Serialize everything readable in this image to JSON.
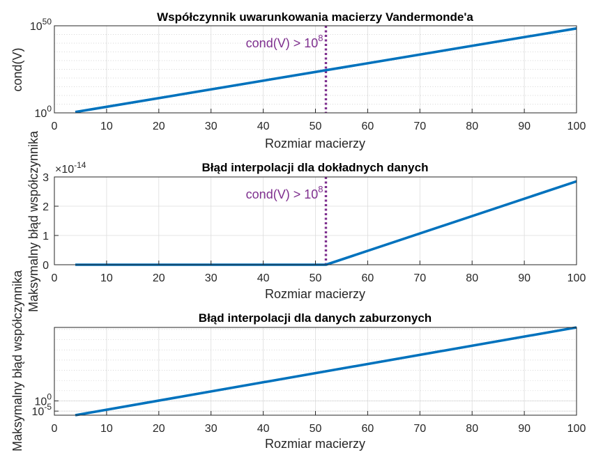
{
  "colors": {
    "series": "#0072BD",
    "threshold": "#7E2F8E",
    "grid": "#dcdcdc",
    "axis": "#262626"
  },
  "chart_data": [
    {
      "type": "line",
      "title": "Współczynnik uwarunkowania macierzy Vandermonde'a",
      "xlabel": "Rozmiar macierzy",
      "ylabel": "cond(V)",
      "yscale": "log",
      "xlim": [
        0,
        100
      ],
      "ylim_exp": [
        0,
        50
      ],
      "xticks": [
        "0",
        "10",
        "20",
        "30",
        "40",
        "50",
        "60",
        "70",
        "80",
        "90",
        "100"
      ],
      "yticks": [
        {
          "base": "10",
          "exp": "0"
        },
        {
          "base": "10",
          "exp": "50"
        }
      ],
      "grid": true,
      "series": [
        {
          "x": [
            4,
            100
          ],
          "y_exp": [
            0.5,
            48.5
          ]
        }
      ],
      "threshold": {
        "x": 52,
        "label_base": "cond(V) > 10",
        "label_exp": "8"
      }
    },
    {
      "type": "line",
      "title": "Błąd interpolacji dla dokładnych danych",
      "xlabel": "Rozmiar macierzy",
      "ylabel": "Maksymalny błąd współczynnika",
      "yscale": "linear",
      "xlim": [
        0,
        100
      ],
      "ylim": [
        0,
        3
      ],
      "y_multiplier": {
        "base": "×10",
        "exp": "-14"
      },
      "xticks": [
        "0",
        "10",
        "20",
        "30",
        "40",
        "50",
        "60",
        "70",
        "80",
        "90",
        "100"
      ],
      "yticks": [
        "0",
        "1",
        "2",
        "3"
      ],
      "grid": true,
      "series": [
        {
          "x": [
            4,
            52,
            100
          ],
          "y": [
            0,
            0,
            2.85
          ]
        }
      ],
      "threshold": {
        "x": 52,
        "label_base": "cond(V) > 10",
        "label_exp": "8"
      }
    },
    {
      "type": "line",
      "title": "Błąd interpolacji dla danych zaburzonych",
      "xlabel": "Rozmiar macierzy",
      "ylabel": "Maksymalny błąd współczynnika",
      "yscale": "log",
      "xlim": [
        0,
        100
      ],
      "ylim_exp": [
        -7,
        36
      ],
      "xticks": [
        "0",
        "10",
        "20",
        "30",
        "40",
        "50",
        "60",
        "70",
        "80",
        "90",
        "100"
      ],
      "yticks": [
        {
          "base": "10",
          "exp": "-5"
        },
        {
          "base": "10",
          "exp": "0"
        }
      ],
      "grid": true,
      "series": [
        {
          "x": [
            4,
            100
          ],
          "y_exp": [
            -7,
            36
          ]
        }
      ]
    }
  ]
}
